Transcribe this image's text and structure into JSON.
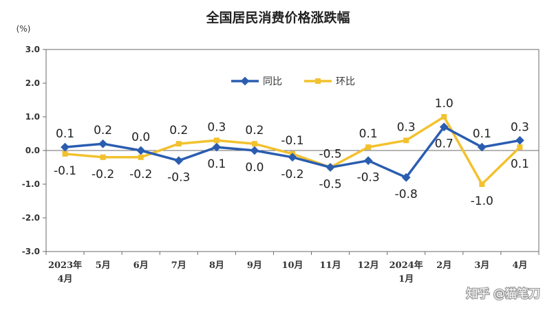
{
  "chart_data": {
    "type": "line",
    "title": "全国居民消费价格涨跌幅",
    "y_unit": "(%)",
    "ylim": [
      -3.0,
      3.0
    ],
    "yticks": [
      "3.0",
      "2.0",
      "1.0",
      "0.0",
      "-1.0",
      "-2.0",
      "-3.0"
    ],
    "ytick_values": [
      3,
      2,
      1,
      0,
      -1,
      -2,
      -3
    ],
    "categories": [
      [
        "2023年",
        "4月"
      ],
      [
        "5月"
      ],
      [
        "6月"
      ],
      [
        "7月"
      ],
      [
        "8月"
      ],
      [
        "9月"
      ],
      [
        "10月"
      ],
      [
        "11月"
      ],
      [
        "12月"
      ],
      [
        "2024年",
        "1月"
      ],
      [
        "2月"
      ],
      [
        "3月"
      ],
      [
        "4月"
      ]
    ],
    "series": [
      {
        "name": "同比",
        "color": "#2a5db0",
        "values": [
          0.1,
          0.2,
          0.0,
          -0.3,
          0.1,
          0.0,
          -0.2,
          -0.5,
          -0.3,
          -0.8,
          0.7,
          0.1,
          0.3
        ],
        "labels": [
          "0.1",
          "0.2",
          "0.0",
          "-0.3",
          "0.1",
          "0.0",
          "-0.2",
          "-0.5",
          "-0.3",
          "-0.8",
          "0.7",
          "0.1",
          "0.3"
        ],
        "label_pos": [
          "above",
          "above",
          "above",
          "below",
          "below",
          "below",
          "below",
          "below",
          "below",
          "below",
          "below",
          "above",
          "above"
        ]
      },
      {
        "name": "环比",
        "color": "#f2c12e",
        "values": [
          -0.1,
          -0.2,
          -0.2,
          0.2,
          0.3,
          0.2,
          -0.1,
          -0.5,
          0.1,
          0.3,
          1.0,
          -1.0,
          0.1
        ],
        "labels": [
          "-0.1",
          "-0.2",
          "-0.2",
          "0.2",
          "0.3",
          "0.2",
          "-0.1",
          "-0.5",
          "0.1",
          "0.3",
          "1.0",
          "-1.0",
          "0.1"
        ],
        "label_pos": [
          "below",
          "below",
          "below",
          "above",
          "above",
          "above",
          "above",
          "above",
          "above",
          "above",
          "above",
          "below",
          "below"
        ]
      }
    ],
    "legend_position": "top-center",
    "grid": false
  },
  "watermark": "知乎 @猫笔刀"
}
